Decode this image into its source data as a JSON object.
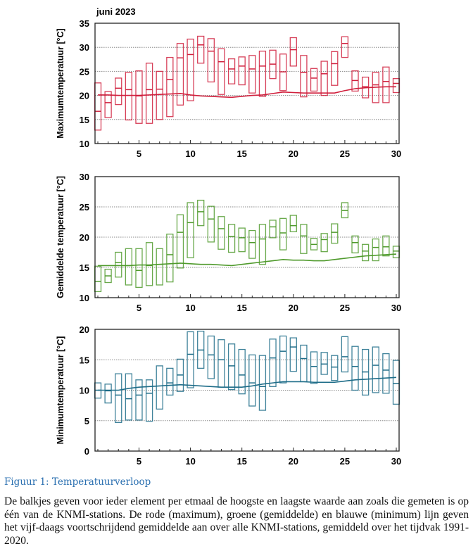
{
  "chart_data": [
    {
      "type": "bar",
      "subtype": "range-box",
      "title": "juni 2023",
      "ylabel": "Maximumtemperatuur [°C]",
      "ylim": [
        10,
        35
      ],
      "yticks": [
        10,
        15,
        20,
        25,
        30,
        35
      ],
      "xlim": [
        1,
        30
      ],
      "xticks": [
        5,
        10,
        15,
        20,
        25,
        30
      ],
      "grid": true,
      "color": "#d01f3c",
      "days": [
        1,
        2,
        3,
        4,
        5,
        6,
        7,
        8,
        9,
        10,
        11,
        12,
        13,
        14,
        15,
        16,
        17,
        18,
        19,
        20,
        21,
        22,
        23,
        24,
        25,
        26,
        27,
        28,
        29,
        30
      ],
      "max": [
        22.6,
        20.8,
        23.6,
        24.8,
        25.1,
        26.7,
        25.0,
        27.9,
        30.8,
        31.7,
        32.3,
        31.8,
        29.7,
        27.6,
        28.0,
        28.3,
        29.2,
        29.4,
        28.6,
        32.0,
        28.3,
        25.6,
        27.1,
        29.1,
        32.2,
        25.1,
        23.8,
        24.8,
        25.9,
        23.5
      ],
      "mid": [
        16.7,
        18.5,
        21.5,
        21.2,
        19.9,
        21.2,
        21.3,
        23.3,
        27.8,
        28.5,
        30.5,
        29.2,
        27.0,
        25.5,
        26.1,
        25.5,
        26.1,
        26.5,
        24.9,
        29.5,
        24.8,
        23.6,
        24.5,
        26.6,
        30.8,
        23.1,
        21.8,
        22.2,
        22.9,
        22.5
      ],
      "min": [
        12.8,
        15.4,
        18.1,
        14.9,
        14.2,
        14.2,
        15.0,
        15.6,
        18.0,
        18.9,
        26.7,
        22.8,
        20.2,
        22.4,
        22.2,
        20.5,
        19.8,
        23.5,
        21.0,
        26.1,
        19.7,
        20.9,
        20.0,
        22.1,
        27.9,
        20.9,
        19.5,
        18.5,
        18.5,
        20.6
      ],
      "normal_5day_avg": [
        20.1,
        20.1,
        20.0,
        20.0,
        20.0,
        20.1,
        20.2,
        20.3,
        20.4,
        20.1,
        19.9,
        19.8,
        19.7,
        19.6,
        19.8,
        20.0,
        20.1,
        20.4,
        20.7,
        20.6,
        20.5,
        20.5,
        20.5,
        20.5,
        21.0,
        21.4,
        21.6,
        21.7,
        21.8,
        21.8
      ]
    },
    {
      "type": "bar",
      "subtype": "range-box",
      "title": "",
      "ylabel": "Gemiddelde temperatuur [°C]",
      "ylim": [
        10,
        30
      ],
      "yticks": [
        10,
        15,
        20,
        25,
        30
      ],
      "xlim": [
        1,
        30
      ],
      "xticks": [
        5,
        10,
        15,
        20,
        25,
        30
      ],
      "grid": true,
      "color": "#4f9a2c",
      "days": [
        1,
        2,
        3,
        4,
        5,
        6,
        7,
        8,
        9,
        10,
        11,
        12,
        13,
        14,
        15,
        16,
        17,
        18,
        19,
        20,
        21,
        22,
        23,
        24,
        25,
        26,
        27,
        28,
        29,
        30
      ],
      "max": [
        15.2,
        14.7,
        17.5,
        18.1,
        18.1,
        19.1,
        18.1,
        20.5,
        23.7,
        25.7,
        26.1,
        25.1,
        23.4,
        22.1,
        21.5,
        21.1,
        22.1,
        22.8,
        23.1,
        23.6,
        22.1,
        19.8,
        20.6,
        22.2,
        25.7,
        20.2,
        18.8,
        19.7,
        20.2,
        18.5
      ],
      "mid": [
        12.7,
        13.6,
        15.8,
        15.3,
        14.5,
        15.3,
        15.5,
        17.1,
        20.8,
        22.4,
        24.2,
        23.0,
        21.4,
        20.1,
        19.9,
        19.1,
        19.7,
        21.7,
        20.7,
        21.9,
        20.2,
        18.8,
        19.6,
        20.8,
        24.4,
        19.1,
        17.7,
        18.3,
        18.4,
        17.7
      ],
      "min": [
        11.0,
        12.5,
        13.4,
        12.1,
        11.7,
        12.0,
        12.1,
        12.6,
        14.9,
        16.6,
        21.9,
        19.2,
        18.0,
        17.5,
        17.6,
        16.5,
        15.5,
        19.9,
        17.9,
        20.9,
        17.3,
        17.9,
        17.6,
        19.0,
        23.2,
        17.4,
        16.1,
        16.1,
        16.9,
        16.6
      ],
      "normal_5day_avg": [
        15.3,
        15.3,
        15.3,
        15.3,
        15.4,
        15.4,
        15.5,
        15.6,
        15.7,
        15.6,
        15.5,
        15.5,
        15.4,
        15.3,
        15.5,
        15.7,
        15.9,
        16.1,
        16.3,
        16.2,
        16.2,
        16.1,
        16.1,
        16.3,
        16.5,
        16.7,
        16.9,
        17.0,
        17.1,
        17.2
      ]
    },
    {
      "type": "bar",
      "subtype": "range-box",
      "title": "",
      "ylabel": "Minimumtemperatuur [°C]",
      "ylim": [
        0,
        20
      ],
      "yticks": [
        0,
        5,
        10,
        15,
        20
      ],
      "xlim": [
        1,
        30
      ],
      "xticks": [
        5,
        10,
        15,
        20,
        25,
        30
      ],
      "grid": true,
      "color": "#1d6c88",
      "days": [
        1,
        2,
        3,
        4,
        5,
        6,
        7,
        8,
        9,
        10,
        11,
        12,
        13,
        14,
        15,
        16,
        17,
        18,
        19,
        20,
        21,
        22,
        23,
        24,
        25,
        26,
        27,
        28,
        29,
        30
      ],
      "max": [
        11.2,
        11.0,
        12.7,
        12.7,
        11.7,
        11.7,
        14.0,
        13.6,
        15.1,
        19.6,
        19.7,
        18.9,
        18.3,
        17.6,
        16.7,
        15.8,
        15.7,
        18.4,
        18.9,
        18.6,
        17.4,
        16.3,
        16.2,
        15.7,
        18.8,
        17.2,
        16.7,
        17.1,
        16.0,
        14.9
      ],
      "mid": [
        10.0,
        9.9,
        9.2,
        8.6,
        9.2,
        9.5,
        null,
        11.2,
        12.5,
        15.9,
        16.6,
        15.8,
        15.0,
        14.0,
        12.5,
        11.2,
        10.6,
        15.3,
        16.4,
        17.1,
        15.2,
        13.9,
        14.3,
        13.8,
        15.5,
        13.9,
        13.0,
        14.1,
        13.3,
        11.1
      ],
      "min": [
        8.7,
        7.9,
        4.7,
        5.1,
        5.1,
        4.9,
        6.9,
        9.2,
        9.8,
        10.4,
        13.6,
        11.9,
        10.5,
        10.1,
        9.4,
        7.4,
        6.7,
        10.6,
        11.2,
        13.1,
        11.4,
        11.1,
        12.6,
        11.6,
        13.0,
        10.0,
        9.2,
        9.6,
        9.5,
        7.7
      ],
      "normal_5day_avg": [
        10.0,
        10.0,
        10.0,
        10.3,
        10.5,
        10.6,
        10.7,
        10.8,
        10.9,
        10.8,
        10.7,
        10.6,
        10.5,
        10.5,
        10.5,
        10.7,
        11.0,
        11.2,
        11.4,
        11.4,
        11.4,
        11.3,
        11.3,
        11.3,
        11.5,
        11.7,
        11.8,
        11.9,
        12.0,
        12.1
      ]
    }
  ],
  "caption": {
    "label": "Figuur 1: Temperatuurverloop",
    "text": "De balkjes geven voor ieder element per etmaal de hoogste en laagste waarde aan zoals die gemeten is op één van de KNMI-stations. De rode (maximum), groene (gemiddelde) en blauwe (minimum) lijn geven het vijf-daags voortschrijdend gemiddelde aan over alle KNMI-stations, gemiddeld over het tijdvak 1991-2020."
  }
}
